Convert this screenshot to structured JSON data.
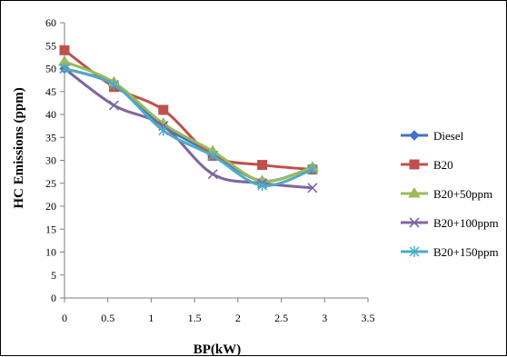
{
  "chart_data": {
    "type": "line",
    "title": "",
    "xlabel": "BP(kW)",
    "ylabel": "HC Emissions (ppm)",
    "xlim": [
      0,
      3.5
    ],
    "ylim": [
      0,
      60
    ],
    "xticks": [
      "0",
      "0.5",
      "1",
      "1.5",
      "2",
      "2.5",
      "3",
      "3.5"
    ],
    "yticks": [
      "0",
      "5",
      "10",
      "15",
      "20",
      "25",
      "30",
      "35",
      "40",
      "45",
      "50",
      "55",
      "60"
    ],
    "grid": false,
    "legend": "right",
    "series": [
      {
        "name": "Diesel",
        "color": "#4472c4",
        "marker": "diamond",
        "x": [
          0,
          0.57,
          1.14,
          1.71,
          2.28,
          2.86
        ],
        "y": [
          50,
          46.5,
          37.5,
          31.5,
          25.5,
          28.5
        ]
      },
      {
        "name": "B20",
        "color": "#c0504d",
        "marker": "square",
        "x": [
          0,
          0.57,
          1.14,
          1.71,
          2.28,
          2.86
        ],
        "y": [
          54,
          46,
          41,
          31,
          29,
          28
        ]
      },
      {
        "name": "B20+50ppm",
        "color": "#9bbb59",
        "marker": "triangle",
        "x": [
          0,
          0.57,
          1.14,
          1.71,
          2.28,
          2.86
        ],
        "y": [
          51.5,
          47,
          38,
          32,
          25.5,
          28.5
        ]
      },
      {
        "name": "B20+100ppm",
        "color": "#8064a2",
        "marker": "x",
        "x": [
          0,
          0.57,
          1.14,
          1.71,
          2.28,
          2.86
        ],
        "y": [
          50,
          42,
          37.5,
          27,
          25,
          24
        ]
      },
      {
        "name": "B20+150ppm",
        "color": "#4bacc6",
        "marker": "star",
        "x": [
          0,
          0.57,
          1.14,
          1.71,
          2.28,
          2.86
        ],
        "y": [
          50,
          46.5,
          36.5,
          31,
          24.5,
          28
        ]
      }
    ]
  }
}
